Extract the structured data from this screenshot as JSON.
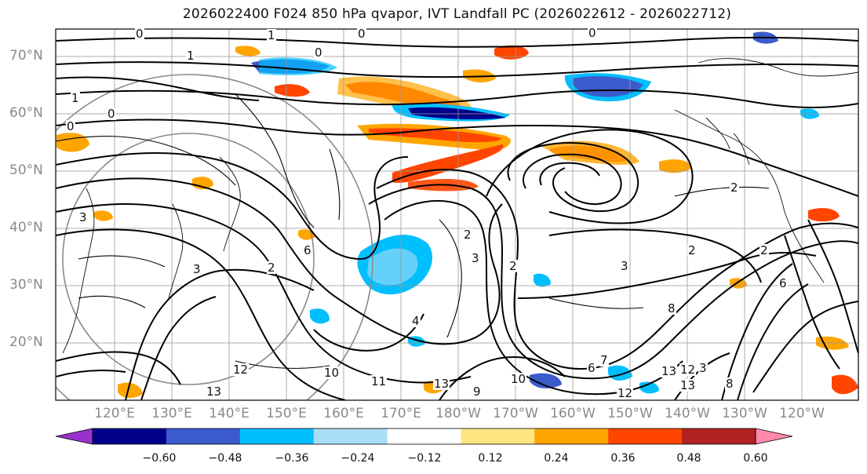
{
  "title": "2026022400 F024 850 hPa qvapor, IVT Landfall PC (2026022612 - 2026022712)",
  "map": {
    "lat_labels": [
      "70°N",
      "60°N",
      "50°N",
      "40°N",
      "30°N",
      "20°N"
    ],
    "lon_labels": [
      "120°E",
      "130°E",
      "140°E",
      "150°E",
      "160°E",
      "170°E",
      "180°W",
      "170°W",
      "160°W",
      "150°W",
      "140°W",
      "130°W",
      "120°W"
    ],
    "contour_labels": [
      "0",
      "0",
      "1",
      "0",
      "0",
      "1",
      "0",
      "1",
      "0",
      "2",
      "3",
      "6",
      "2",
      "2",
      "2",
      "2",
      "3",
      "4",
      "3",
      "2",
      "3",
      "3",
      "8",
      "6",
      "10",
      "12",
      "13",
      "11",
      "13",
      "13",
      "9",
      "10",
      "12",
      "12",
      "13",
      "8",
      "7",
      "6"
    ]
  },
  "colorbar": {
    "colors": [
      "#9932cc",
      "#00008b",
      "#3b5bcc",
      "#00bfff",
      "#a9ddf7",
      "#ffffff",
      "#ffe680",
      "#ffa500",
      "#ff4500",
      "#b22222",
      "#ff88aa"
    ],
    "ticks": [
      "−0.60",
      "−0.48",
      "−0.36",
      "−0.24",
      "−0.12",
      "0.12",
      "0.24",
      "0.36",
      "0.48",
      "0.60"
    ]
  }
}
